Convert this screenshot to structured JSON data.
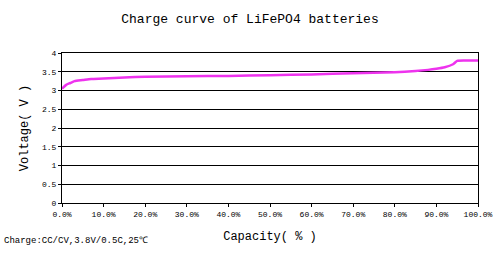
{
  "chart_data": {
    "type": "line",
    "title": "Charge curve of LiFePO4 batteries",
    "x_label": "Capacity( % )",
    "y_label": "Voltage( V )",
    "annotations": [
      "Charge:CC/CV,3.8V/0.5C,25℃"
    ],
    "x": [
      0,
      1,
      2,
      3,
      5,
      7,
      10,
      15,
      20,
      30,
      40,
      50,
      60,
      70,
      80,
      85,
      88,
      90,
      92,
      94,
      95,
      97,
      100
    ],
    "values": [
      3.05,
      3.15,
      3.2,
      3.25,
      3.28,
      3.31,
      3.32,
      3.35,
      3.37,
      3.38,
      3.39,
      3.41,
      3.43,
      3.46,
      3.49,
      3.52,
      3.55,
      3.58,
      3.62,
      3.7,
      3.79,
      3.8,
      3.8
    ],
    "color": "#ee33ee",
    "xlim": [
      0,
      100
    ],
    "xticks": [
      {
        "value": 0,
        "label": "0.0%"
      },
      {
        "value": 10,
        "label": "10.0%"
      },
      {
        "value": 20,
        "label": "20.0%"
      },
      {
        "value": 30,
        "label": "30.0%"
      },
      {
        "value": 40,
        "label": "40.0%"
      },
      {
        "value": 50,
        "label": "50.0%"
      },
      {
        "value": 60,
        "label": "60.0%"
      },
      {
        "value": 70,
        "label": "70.0%"
      },
      {
        "value": 80,
        "label": "80.0%"
      },
      {
        "value": 90,
        "label": "90.0%"
      },
      {
        "value": 100,
        "label": "100.0%"
      }
    ],
    "ylim": [
      0,
      4
    ],
    "yticks": [
      0,
      0.5,
      1,
      1.5,
      2,
      2.5,
      3,
      3.5,
      4
    ],
    "grid": true
  }
}
